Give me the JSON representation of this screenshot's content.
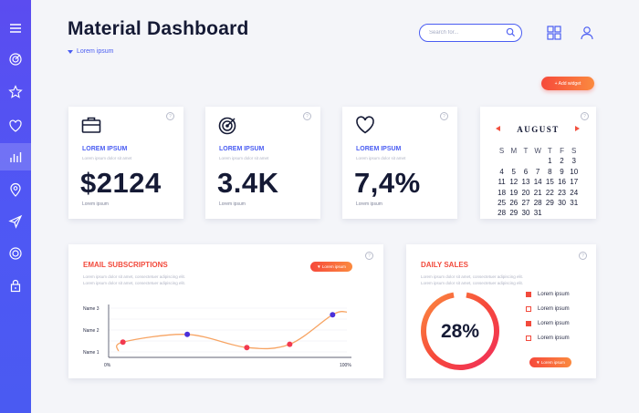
{
  "colors": {
    "accent": "#4a5df2",
    "sidebar": "#5b4cf0",
    "orange": "#f6493b",
    "orange_end": "#fb8a3f",
    "dark": "#151a35"
  },
  "sidebar": {
    "items": [
      {
        "icon": "menu-icon"
      },
      {
        "icon": "target-icon"
      },
      {
        "icon": "star-icon"
      },
      {
        "icon": "heart-icon"
      },
      {
        "icon": "bar-chart-icon",
        "active": true
      },
      {
        "icon": "location-pin-icon"
      },
      {
        "icon": "send-icon"
      },
      {
        "icon": "record-icon"
      },
      {
        "icon": "lock-icon"
      }
    ]
  },
  "header": {
    "title": "Material Dashboard",
    "subtitle": "Lorem ipsum",
    "search_placeholder": "Search for...",
    "icons": [
      "grid-icon",
      "user-icon"
    ]
  },
  "add_widget_label": "+ Add widget",
  "kpis": [
    {
      "icon": "briefcase-icon",
      "label": "LOREM IPSUM",
      "sub": "Lorem ipsum dolor sit amet",
      "value": "$2124",
      "foot": "Lorem ipsum"
    },
    {
      "icon": "target-icon",
      "label": "LOREM IPSUM",
      "sub": "Lorem ipsum dolor sit amet",
      "value": "3.4K",
      "foot": "Lorem ipsum"
    },
    {
      "icon": "heart-icon",
      "label": "LOREM IPSUM",
      "sub": "Lorem ipsum dolor sit amet",
      "value": "7,4%",
      "foot": "Lorem ipsum"
    }
  ],
  "calendar": {
    "month": "AUGUST",
    "weekdays": [
      "S",
      "M",
      "T",
      "W",
      "T",
      "F",
      "S"
    ],
    "weeks": [
      [
        "",
        "",
        "",
        "",
        "1",
        "2",
        "3"
      ],
      [
        "4",
        "5",
        "6",
        "7",
        "8",
        "9",
        "10"
      ],
      [
        "11",
        "12",
        "13",
        "14",
        "15",
        "16",
        "17"
      ],
      [
        "18",
        "19",
        "20",
        "21",
        "22",
        "23",
        "24"
      ],
      [
        "25",
        "26",
        "27",
        "28",
        "29",
        "30",
        "31"
      ],
      [
        "28",
        "29",
        "30",
        "31",
        "",
        "",
        ""
      ]
    ]
  },
  "email": {
    "title": "EMAIL SUBSCRIPTIONS",
    "lines": [
      "Lorem ipsum dolor sit amet, consectetuer adipiscing elit.",
      "Lorem ipsum dolor sit amet, consectetuer adipiscing elit."
    ],
    "button": "▼ Lorem ipsum",
    "chart_data": {
      "type": "line",
      "y_categories": [
        "Name 1",
        "Name 2",
        "Name 3"
      ],
      "x_range_labels": [
        "0%",
        "100%"
      ],
      "points": [
        {
          "x": 6,
          "y": 1.45,
          "color": "#f2394f"
        },
        {
          "x": 33,
          "y": 1.8,
          "color": "#4a2fd9"
        },
        {
          "x": 58,
          "y": 1.2,
          "color": "#f2394f"
        },
        {
          "x": 76,
          "y": 1.35,
          "color": "#f2394f"
        },
        {
          "x": 94,
          "y": 2.7,
          "color": "#4a2fd9"
        }
      ]
    }
  },
  "daily_sales": {
    "title": "DAILY SALES",
    "lines": [
      "Lorem ipsum dolor sit amet, consectetuer adipiscing elit.",
      "Lorem ipsum dolor sit amet, consectetuer adipiscing elit."
    ],
    "percent": 28,
    "percent_label": "28%",
    "legend": [
      {
        "label": "Lorem ipsum",
        "filled": true
      },
      {
        "label": "Lorem ipsum",
        "filled": false
      },
      {
        "label": "Lorem ipsum",
        "filled": true
      },
      {
        "label": "Lorem ipsum",
        "filled": false
      }
    ],
    "button": "▼ Lorem ipsum"
  }
}
